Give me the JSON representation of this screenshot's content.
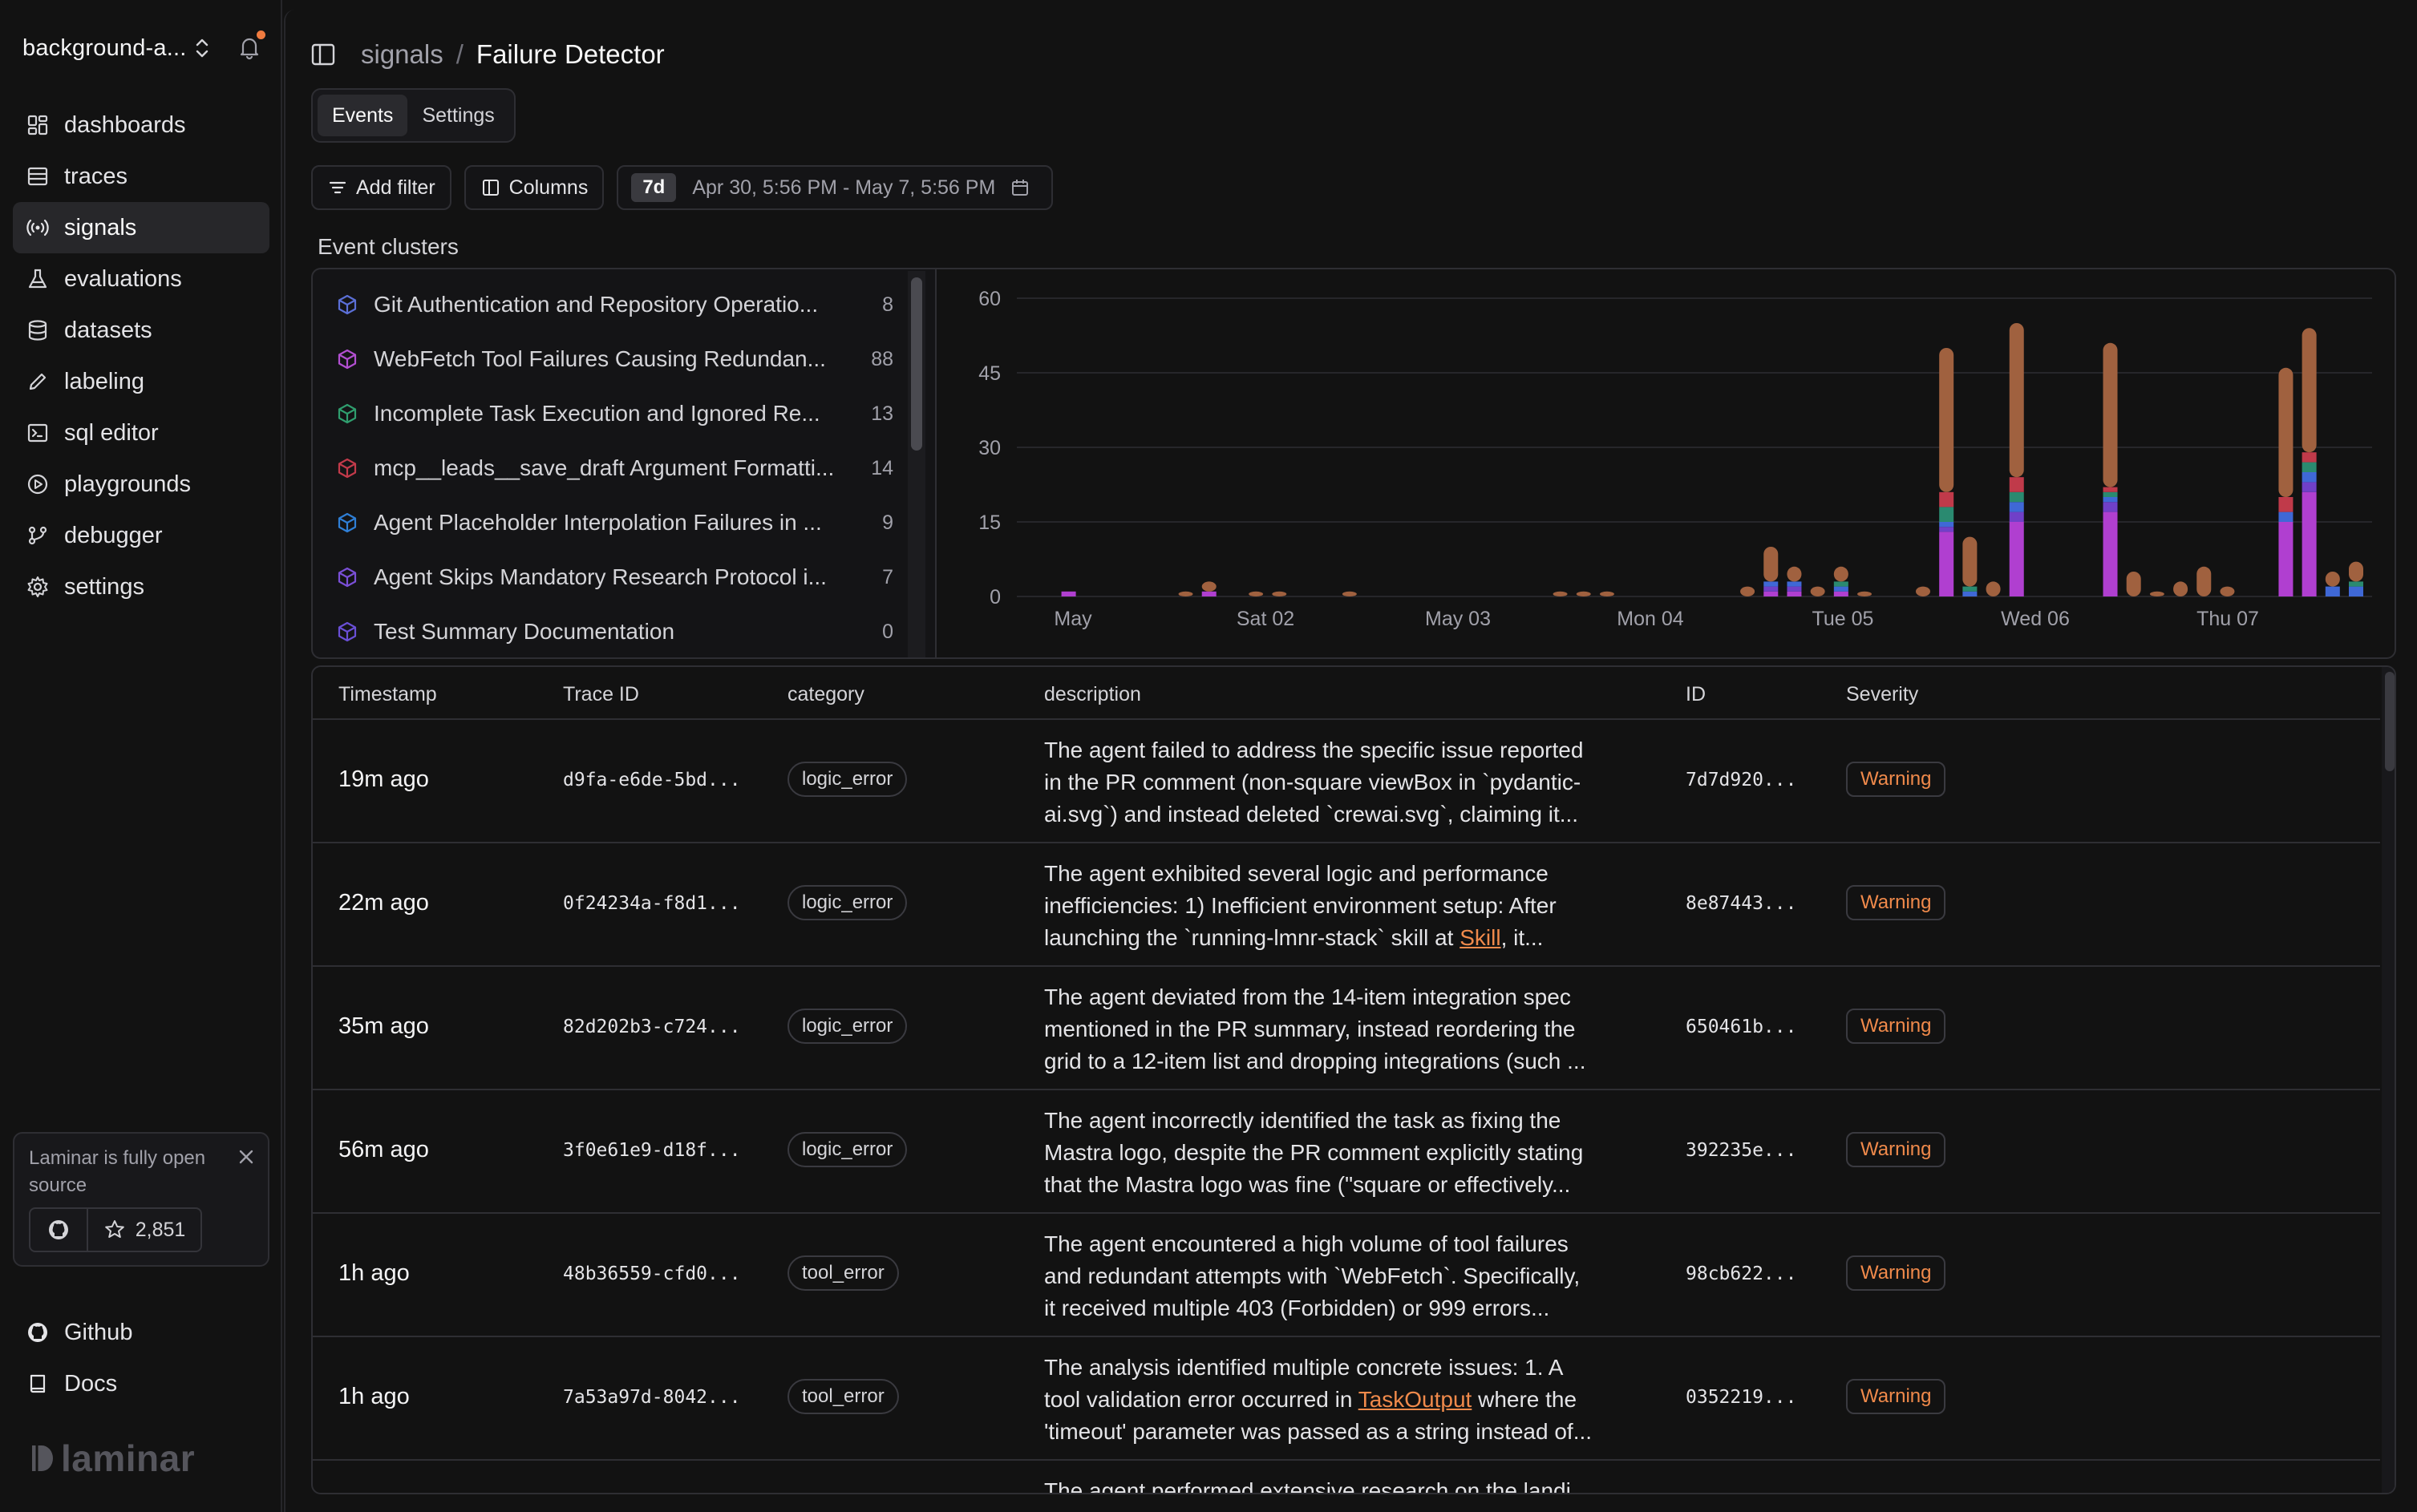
{
  "sidebar": {
    "org_name": "background-a...",
    "nav": [
      {
        "label": "dashboards",
        "icon": "dashboard-icon"
      },
      {
        "label": "traces",
        "icon": "traces-icon"
      },
      {
        "label": "signals",
        "icon": "signals-icon",
        "active": true
      },
      {
        "label": "evaluations",
        "icon": "flask-icon"
      },
      {
        "label": "datasets",
        "icon": "database-icon"
      },
      {
        "label": "labeling",
        "icon": "pen-icon"
      },
      {
        "label": "sql editor",
        "icon": "sql-editor-icon"
      },
      {
        "label": "playgrounds",
        "icon": "play-circle-icon"
      },
      {
        "label": "debugger",
        "icon": "debugger-icon"
      },
      {
        "label": "settings",
        "icon": "gear-icon"
      }
    ],
    "oss_card": {
      "text": "Laminar is fully open source",
      "stars": "2,851"
    },
    "footer": [
      {
        "label": "Github",
        "icon": "github-icon"
      },
      {
        "label": "Docs",
        "icon": "book-icon"
      }
    ],
    "logo_text": "laminar"
  },
  "header": {
    "breadcrumb_parent": "signals",
    "breadcrumb_sep": "/",
    "breadcrumb_current": "Failure Detector"
  },
  "tabs": [
    {
      "label": "Events",
      "active": true
    },
    {
      "label": "Settings",
      "active": false
    }
  ],
  "filters": {
    "add_filter": "Add filter",
    "columns": "Columns",
    "range_chip": "7d",
    "range_text": "Apr 30, 5:56 PM - May 7, 5:56 PM"
  },
  "clusters": {
    "title": "Event clusters",
    "items": [
      {
        "label": "Git Authentication and Repository Operatio...",
        "count": "8",
        "color": "#5b6fd6"
      },
      {
        "label": "WebFetch Tool Failures Causing Redundan...",
        "count": "88",
        "color": "#b24fd1"
      },
      {
        "label": "Incomplete Task Execution and Ignored Re...",
        "count": "13",
        "color": "#2f9e6e"
      },
      {
        "label": "mcp__leads__save_draft Argument Formatti...",
        "count": "14",
        "color": "#c23a4a"
      },
      {
        "label": "Agent Placeholder Interpolation Failures in ...",
        "count": "9",
        "color": "#2f7fd6"
      },
      {
        "label": "Agent Skips Mandatory Research Protocol i...",
        "count": "7",
        "color": "#7a4fd6"
      },
      {
        "label": "Test Summary Documentation",
        "count": "0",
        "color": "#6a4fd6"
      }
    ]
  },
  "chart_data": {
    "type": "bar",
    "stacked": true,
    "y_ticks": [
      "60",
      "45",
      "30",
      "15",
      "0"
    ],
    "ylim": [
      0,
      60
    ],
    "x_tick_labels": [
      "May",
      "Sat 02",
      "May 03",
      "Mon 04",
      "Tue 05",
      "Wed 06",
      "Thu 07"
    ],
    "series_colors": {
      "orange": "#a0613f",
      "purple": "#b03fd0",
      "teal": "#2a8a70",
      "blue": "#3f68d6",
      "red": "#c03a4a",
      "violet": "#7040c8"
    },
    "bars": [
      {
        "x": 0.01,
        "purple": 1,
        "orange": 0
      },
      {
        "x": 0.11,
        "orange": 1
      },
      {
        "x": 0.13,
        "orange": 2,
        "purple": 1
      },
      {
        "x": 0.17,
        "orange": 1
      },
      {
        "x": 0.19,
        "orange": 1
      },
      {
        "x": 0.25,
        "orange": 1
      },
      {
        "x": 0.43,
        "orange": 1
      },
      {
        "x": 0.45,
        "orange": 1
      },
      {
        "x": 0.47,
        "orange": 1
      },
      {
        "x": 0.59,
        "orange": 2
      },
      {
        "x": 0.61,
        "orange": 7,
        "purple": 1,
        "blue": 1,
        "violet": 1
      },
      {
        "x": 0.63,
        "orange": 3,
        "purple": 1,
        "blue": 1,
        "violet": 1
      },
      {
        "x": 0.65,
        "orange": 2
      },
      {
        "x": 0.67,
        "orange": 3,
        "teal": 1,
        "blue": 1,
        "purple": 1
      },
      {
        "x": 0.69,
        "orange": 1
      },
      {
        "x": 0.74,
        "orange": 2
      },
      {
        "x": 0.76,
        "orange": 29,
        "purple": 13,
        "teal": 3,
        "red": 3,
        "blue": 1,
        "violet": 1
      },
      {
        "x": 0.78,
        "orange": 10,
        "teal": 1,
        "blue": 1
      },
      {
        "x": 0.8,
        "orange": 3
      },
      {
        "x": 0.82,
        "orange": 31,
        "purple": 15,
        "red": 3,
        "teal": 2,
        "violet": 2,
        "blue": 2
      },
      {
        "x": 0.9,
        "orange": 29,
        "purple": 17,
        "teal": 1,
        "blue": 1,
        "red": 1,
        "violet": 2
      },
      {
        "x": 0.92,
        "orange": 5
      },
      {
        "x": 0.94,
        "orange": 1
      },
      {
        "x": 0.96,
        "orange": 3
      },
      {
        "x": 0.98,
        "orange": 6
      },
      {
        "x": 1.0,
        "orange": 2
      },
      {
        "x": 1.05,
        "orange": 26,
        "purple": 15,
        "red": 3,
        "blue": 2
      },
      {
        "x": 1.07,
        "orange": 25,
        "purple": 21,
        "teal": 2,
        "red": 2,
        "violet": 2,
        "blue": 2
      },
      {
        "x": 1.09,
        "orange": 3,
        "blue": 2
      },
      {
        "x": 1.11,
        "orange": 4,
        "teal": 1,
        "blue": 2
      }
    ]
  },
  "table": {
    "columns": [
      "Timestamp",
      "Trace ID",
      "category",
      "description",
      "ID",
      "Severity"
    ],
    "rows": [
      {
        "time": "19m ago",
        "trace": "d9fa-e6de-5bd...",
        "category": "logic_error",
        "desc": [
          "The agent failed to address the specific issue reported",
          "in the PR comment (non-square viewBox in `pydantic-",
          "ai.svg`) and instead deleted `crewai.svg`, claiming it..."
        ],
        "id": "7d7d920...",
        "severity": "Warning"
      },
      {
        "time": "22m ago",
        "trace": "0f24234a-f8d1...",
        "category": "logic_error",
        "desc_pre": [
          "The agent exhibited several logic and performance",
          "inefficiencies: 1) Inefficient environment setup: After",
          "launching the `running-lmnr-stack` skill at "
        ],
        "desc_link": "Skill",
        "desc_post": ", it...",
        "id": "8e87443...",
        "severity": "Warning"
      },
      {
        "time": "35m ago",
        "trace": "82d202b3-c724...",
        "category": "logic_error",
        "desc": [
          "The agent deviated from the 14-item integration spec",
          "mentioned in the PR summary, instead reordering the",
          "grid to a 12-item list and dropping integrations (such ..."
        ],
        "id": "650461b...",
        "severity": "Warning"
      },
      {
        "time": "56m ago",
        "trace": "3f0e61e9-d18f...",
        "category": "logic_error",
        "desc": [
          "The agent incorrectly identified the task as fixing the",
          "Mastra logo, despite the PR comment explicitly stating",
          "that the Mastra logo was fine (\"square or effectively..."
        ],
        "id": "392235e...",
        "severity": "Warning"
      },
      {
        "time": "1h ago",
        "trace": "48b36559-cfd0...",
        "category": "tool_error",
        "desc": [
          "The agent encountered a high volume of tool failures",
          "and redundant attempts with `WebFetch`. Specifically,",
          "it received multiple 403 (Forbidden) or 999 errors..."
        ],
        "id": "98cb622...",
        "severity": "Warning"
      },
      {
        "time": "1h ago",
        "trace": "7a53a97d-8042...",
        "category": "tool_error",
        "desc_pre": [
          "The analysis identified multiple concrete issues: 1. A",
          "tool validation error occurred in "
        ],
        "desc_link": "TaskOutput",
        "desc_post": " where the",
        "desc_tail": "'timeout' parameter was passed as a string instead of...",
        "id": "0352219...",
        "severity": "Warning"
      }
    ],
    "partial_row_text": "The agent performed extensive research on the landi..."
  }
}
